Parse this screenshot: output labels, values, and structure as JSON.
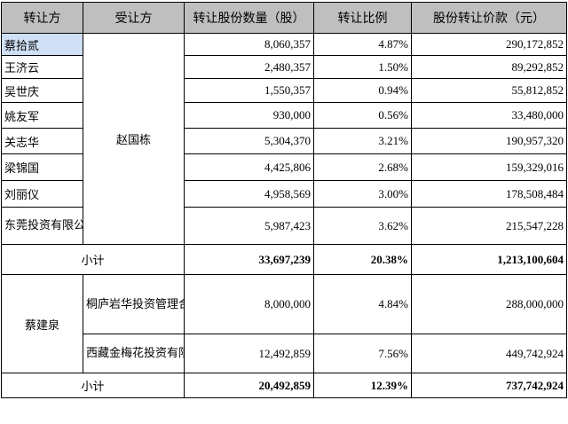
{
  "headers": [
    "转让方",
    "受让方",
    "转让股份数量（股）",
    "转让比例",
    "股份转让价款（元）"
  ],
  "group1": {
    "transferee": "赵国栋",
    "rows": [
      {
        "transferor": "蔡拾贰",
        "shares": "8,060,357",
        "ratio": "4.87%",
        "price": "290,172,852"
      },
      {
        "transferor": "王济云",
        "shares": "2,480,357",
        "ratio": "1.50%",
        "price": "89,292,852"
      },
      {
        "transferor": "吴世庆",
        "shares": "1,550,357",
        "ratio": "0.94%",
        "price": "55,812,852"
      },
      {
        "transferor": "姚友军",
        "shares": "930,000",
        "ratio": "0.56%",
        "price": "33,480,000"
      },
      {
        "transferor": "关志华",
        "shares": "5,304,370",
        "ratio": "3.21%",
        "price": "190,957,320"
      },
      {
        "transferor": "梁锦国",
        "shares": "4,425,806",
        "ratio": "2.68%",
        "price": "159,329,016"
      },
      {
        "transferor": "刘丽仪",
        "shares": "4,958,569",
        "ratio": "3.00%",
        "price": "178,508,484"
      },
      {
        "transferor": "东莞投资有限公司",
        "shares": "5,987,423",
        "ratio": "3.62%",
        "price": "215,547,228"
      }
    ],
    "subtotal": {
      "label": "小计",
      "shares": "33,697,239",
      "ratio": "20.38%",
      "price": "1,213,100,604"
    }
  },
  "group2": {
    "transferor": "蔡建泉",
    "rows": [
      {
        "transferee": "桐庐岩华投资管理合伙企业（有限合伙）",
        "shares": "8,000,000",
        "ratio": "4.84%",
        "price": "288,000,000"
      },
      {
        "transferee": "西藏金梅花投资有限公司",
        "shares": "12,492,859",
        "ratio": "7.56%",
        "price": "449,742,924"
      }
    ],
    "subtotal": {
      "label": "小计",
      "shares": "20,492,859",
      "ratio": "12.39%",
      "price": "737,742,924"
    }
  },
  "colors": {
    "header_bg": "#bfbfbf",
    "highlight": "#cfe0f4",
    "border": "#000000"
  }
}
